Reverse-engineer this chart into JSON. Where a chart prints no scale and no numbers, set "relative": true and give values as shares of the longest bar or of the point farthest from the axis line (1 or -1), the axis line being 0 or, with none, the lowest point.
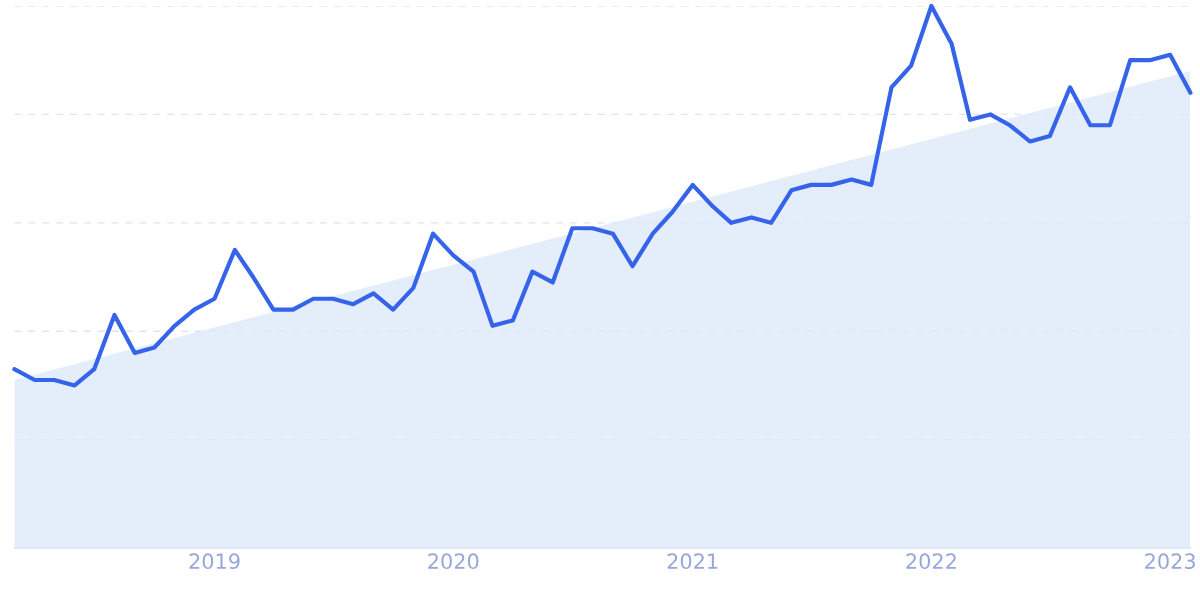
{
  "chart_data": {
    "type": "line",
    "relative": true,
    "grid": "y",
    "legend": false,
    "x": [
      "2018-03",
      "2018-04",
      "2018-05",
      "2018-06",
      "2018-07",
      "2018-08",
      "2018-09",
      "2018-10",
      "2018-11",
      "2018-12",
      "2019-01",
      "2019-02",
      "2019-03",
      "2019-04",
      "2019-05",
      "2019-06",
      "2019-07",
      "2019-08",
      "2019-09",
      "2019-10",
      "2019-11",
      "2019-12",
      "2020-01",
      "2020-02",
      "2020-03",
      "2020-04",
      "2020-05",
      "2020-06",
      "2020-07",
      "2020-08",
      "2020-09",
      "2020-10",
      "2020-11",
      "2020-12",
      "2021-01",
      "2021-02",
      "2021-03",
      "2021-04",
      "2021-05",
      "2021-06",
      "2021-07",
      "2021-08",
      "2021-09",
      "2021-10",
      "2021-11",
      "2021-12",
      "2022-01",
      "2022-02",
      "2022-03",
      "2022-04",
      "2022-05",
      "2022-06",
      "2022-07",
      "2022-08",
      "2022-09",
      "2022-10",
      "2022-11",
      "2022-12",
      "2023-01",
      "2023-02"
    ],
    "xlim": [
      "2018-03",
      "2023-02"
    ],
    "xticks": [
      {
        "value": "2019-01",
        "label": "2019"
      },
      {
        "value": "2020-01",
        "label": "2020"
      },
      {
        "value": "2021-01",
        "label": "2021"
      },
      {
        "value": "2022-01",
        "label": "2022"
      },
      {
        "value": "2023-01",
        "label": "2023"
      }
    ],
    "series": [
      {
        "type": "area",
        "color": "#dde9f9",
        "x": [
          "2018-03",
          "2023-02"
        ],
        "values": [
          0.31,
          0.88
        ]
      },
      {
        "color": "#3563e9",
        "line_style": "solid",
        "marker": "none",
        "values": [
          0.33,
          0.31,
          0.31,
          0.3,
          0.33,
          0.43,
          0.36,
          0.37,
          0.41,
          0.44,
          0.46,
          0.55,
          0.5,
          0.44,
          0.44,
          0.46,
          0.46,
          0.45,
          0.47,
          0.44,
          0.48,
          0.58,
          0.54,
          0.51,
          0.41,
          0.42,
          0.51,
          0.49,
          0.59,
          0.59,
          0.58,
          0.52,
          0.58,
          0.62,
          0.67,
          0.63,
          0.6,
          0.61,
          0.6,
          0.66,
          0.67,
          0.67,
          0.68,
          0.67,
          0.85,
          0.89,
          1.0,
          0.93,
          0.79,
          0.8,
          0.78,
          0.75,
          0.76,
          0.85,
          0.78,
          0.78,
          0.9,
          0.9,
          0.91,
          0.84
        ]
      }
    ]
  }
}
